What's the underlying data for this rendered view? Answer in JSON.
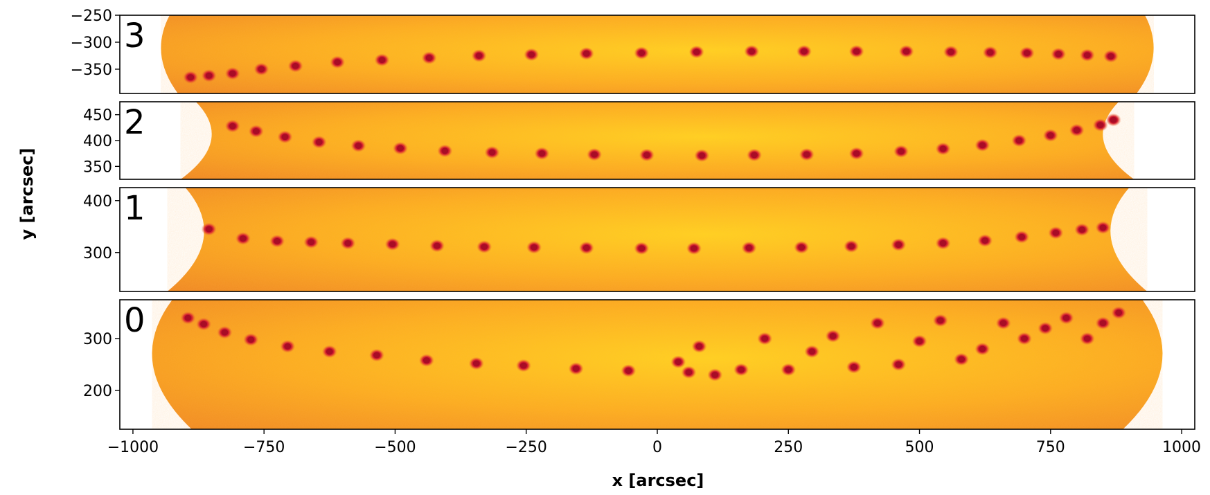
{
  "chart_data": {
    "type": "scatter",
    "title": "",
    "xlabel": "x [arcsec]",
    "ylabel": "y [arcsec]",
    "xlim": [
      -1025,
      1025
    ],
    "x_ticks": [
      -1000,
      -750,
      -500,
      -250,
      0,
      250,
      500,
      750,
      1000
    ],
    "x_tick_labels": [
      "−1000",
      "−750",
      "−500",
      "−250",
      "0",
      "250",
      "500",
      "750",
      "1000"
    ],
    "grid": false,
    "colors": {
      "disk_light": "#ffd21e",
      "disk_mid": "#fcae1e",
      "disk_dark": "#f08a22",
      "spot_outer": "#e8323a",
      "spot_core": "#b8102a"
    },
    "panels": [
      {
        "label": "3",
        "ylim": [
          -395,
          -250
        ],
        "y_ticks": [
          -250,
          -300,
          -350
        ],
        "y_tick_labels": [
          "−250",
          "−300",
          "−350"
        ],
        "limb_x": [
          -930,
          930
        ],
        "limb_tilt": 30,
        "series": [
          {
            "x": [
              -890,
              -855,
              -810,
              -755,
              -690,
              -610,
              -525,
              -435,
              -340,
              -240,
              -135,
              -30,
              75,
              180,
              280,
              380,
              475,
              560,
              635,
              705,
              765,
              820,
              865
            ],
            "y": [
              -365,
              -362,
              -358,
              -350,
              -344,
              -337,
              -333,
              -329,
              -325,
              -323,
              -321,
              -320,
              -318,
              -317,
              -317,
              -317,
              -317,
              -318,
              -319,
              -320,
              -322,
              -324,
              -326
            ]
          }
        ]
      },
      {
        "label": "2",
        "ylim": [
          325,
          475
        ],
        "y_ticks": [
          450,
          400,
          350
        ],
        "y_tick_labels": [
          "450",
          "400",
          "350"
        ],
        "limb_x": [
          -880,
          880
        ],
        "limb_tilt": -55,
        "series": [
          {
            "x": [
              -810,
              -765,
              -710,
              -645,
              -570,
              -490,
              -405,
              -315,
              -220,
              -120,
              -20,
              85,
              185,
              285,
              380,
              465,
              545,
              620,
              690,
              750,
              800,
              845,
              870
            ],
            "y": [
              428,
              418,
              407,
              397,
              390,
              385,
              380,
              377,
              375,
              373,
              372,
              371,
              372,
              373,
              375,
              379,
              384,
              391,
              400,
              410,
              420,
              430,
              440
            ]
          }
        ]
      },
      {
        "label": "1",
        "ylim": [
          225,
          425
        ],
        "y_ticks": [
          400,
          300
        ],
        "y_tick_labels": [
          "400",
          "300"
        ],
        "limb_x": [
          -900,
          900
        ],
        "limb_tilt": -65,
        "series": [
          {
            "x": [
              -855,
              -790,
              -725,
              -660,
              -590,
              -505,
              -420,
              -330,
              -235,
              -135,
              -30,
              70,
              175,
              275,
              370,
              460,
              545,
              625,
              695,
              760,
              810,
              850
            ],
            "y": [
              345,
              327,
              322,
              320,
              318,
              316,
              313,
              311,
              310,
              309,
              308,
              308,
              309,
              310,
              312,
              315,
              318,
              323,
              330,
              338,
              344,
              348
            ]
          }
        ]
      },
      {
        "label": "0",
        "ylim": [
          125,
          375
        ],
        "y_ticks": [
          300,
          200
        ],
        "y_tick_labels": [
          "300",
          "200"
        ],
        "limb_x": [
          -925,
          925
        ],
        "limb_tilt": 70,
        "series": [
          {
            "name": "",
            "x": [
              -895,
              -865,
              -825,
              -775,
              -705,
              -625,
              -535,
              -440,
              -345,
              -255,
              -155,
              -55,
              60
            ],
            "y": [
              340,
              328,
              312,
              298,
              285,
              275,
              268,
              258,
              252,
              248,
              242,
              238,
              235
            ]
          },
          {
            "name": "",
            "x": [
              40,
              80,
              110,
              160,
              205,
              250,
              295,
              335,
              375,
              420,
              460,
              500,
              540,
              580,
              620,
              660,
              700,
              740,
              780,
              820,
              850,
              880
            ],
            "y": [
              255,
              285,
              230,
              240,
              300,
              240,
              275,
              305,
              245,
              330,
              250,
              295,
              335,
              260,
              280,
              330,
              300,
              320,
              340,
              300,
              330,
              350
            ]
          }
        ]
      }
    ]
  }
}
